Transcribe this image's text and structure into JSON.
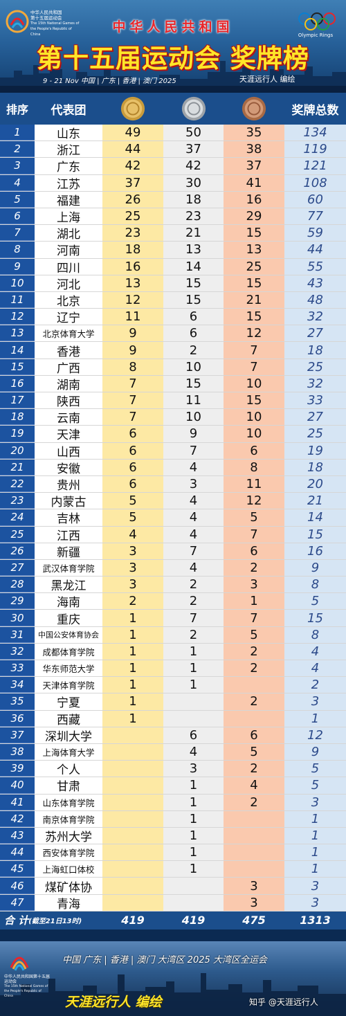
{
  "header": {
    "logo_left_lines": [
      "中华人民共和国",
      "第十五届运动会",
      "The 15th National Games of",
      "the People's Republic of China"
    ],
    "subtitle": "中华人民共和国",
    "title": "第十五届运动会 奖牌榜",
    "date_line": "9 - 21  Nov   中国 | 广东 | 香港 | 澳门  2025",
    "editor": "天涯远行人 编绘",
    "logo_right_text": "Olympic Rings"
  },
  "table": {
    "columns": {
      "rank": "排序",
      "team": "代表团",
      "total": "奖牌总数"
    },
    "medal_icons": [
      "gold-medal-icon",
      "silver-medal-icon",
      "bronze-medal-icon"
    ],
    "rows": [
      {
        "rank": "1",
        "team": "山东",
        "gold": "49",
        "silver": "50",
        "bronze": "35",
        "total": "134"
      },
      {
        "rank": "2",
        "team": "浙江",
        "gold": "44",
        "silver": "37",
        "bronze": "38",
        "total": "119"
      },
      {
        "rank": "3",
        "team": "广东",
        "gold": "42",
        "silver": "42",
        "bronze": "37",
        "total": "121"
      },
      {
        "rank": "4",
        "team": "江苏",
        "gold": "37",
        "silver": "30",
        "bronze": "41",
        "total": "108"
      },
      {
        "rank": "5",
        "team": "福建",
        "gold": "26",
        "silver": "18",
        "bronze": "16",
        "total": "60"
      },
      {
        "rank": "6",
        "team": "上海",
        "gold": "25",
        "silver": "23",
        "bronze": "29",
        "total": "77"
      },
      {
        "rank": "7",
        "team": "湖北",
        "gold": "23",
        "silver": "21",
        "bronze": "15",
        "total": "59"
      },
      {
        "rank": "8",
        "team": "河南",
        "gold": "18",
        "silver": "13",
        "bronze": "13",
        "total": "44"
      },
      {
        "rank": "9",
        "team": "四川",
        "gold": "16",
        "silver": "14",
        "bronze": "25",
        "total": "55"
      },
      {
        "rank": "10",
        "team": "河北",
        "gold": "13",
        "silver": "15",
        "bronze": "15",
        "total": "43"
      },
      {
        "rank": "11",
        "team": "北京",
        "gold": "12",
        "silver": "15",
        "bronze": "21",
        "total": "48"
      },
      {
        "rank": "12",
        "team": "辽宁",
        "gold": "11",
        "silver": "6",
        "bronze": "15",
        "total": "32"
      },
      {
        "rank": "13",
        "team": "北京体育大学",
        "gold": "9",
        "silver": "6",
        "bronze": "12",
        "total": "27"
      },
      {
        "rank": "14",
        "team": "香港",
        "gold": "9",
        "silver": "2",
        "bronze": "7",
        "total": "18"
      },
      {
        "rank": "15",
        "team": "广西",
        "gold": "8",
        "silver": "10",
        "bronze": "7",
        "total": "25"
      },
      {
        "rank": "16",
        "team": "湖南",
        "gold": "7",
        "silver": "15",
        "bronze": "10",
        "total": "32"
      },
      {
        "rank": "17",
        "team": "陕西",
        "gold": "7",
        "silver": "11",
        "bronze": "15",
        "total": "33"
      },
      {
        "rank": "18",
        "team": "云南",
        "gold": "7",
        "silver": "10",
        "bronze": "10",
        "total": "27"
      },
      {
        "rank": "19",
        "team": "天津",
        "gold": "6",
        "silver": "9",
        "bronze": "10",
        "total": "25"
      },
      {
        "rank": "20",
        "team": "山西",
        "gold": "6",
        "silver": "7",
        "bronze": "6",
        "total": "19"
      },
      {
        "rank": "21",
        "team": "安徽",
        "gold": "6",
        "silver": "4",
        "bronze": "8",
        "total": "18"
      },
      {
        "rank": "22",
        "team": "贵州",
        "gold": "6",
        "silver": "3",
        "bronze": "11",
        "total": "20"
      },
      {
        "rank": "23",
        "team": "内蒙古",
        "gold": "5",
        "silver": "4",
        "bronze": "12",
        "total": "21"
      },
      {
        "rank": "24",
        "team": "吉林",
        "gold": "5",
        "silver": "4",
        "bronze": "5",
        "total": "14"
      },
      {
        "rank": "25",
        "team": "江西",
        "gold": "4",
        "silver": "4",
        "bronze": "7",
        "total": "15"
      },
      {
        "rank": "26",
        "team": "新疆",
        "gold": "3",
        "silver": "7",
        "bronze": "6",
        "total": "16"
      },
      {
        "rank": "27",
        "team": "武汉体育学院",
        "gold": "3",
        "silver": "4",
        "bronze": "2",
        "total": "9"
      },
      {
        "rank": "28",
        "team": "黑龙江",
        "gold": "3",
        "silver": "2",
        "bronze": "3",
        "total": "8"
      },
      {
        "rank": "29",
        "team": "海南",
        "gold": "2",
        "silver": "2",
        "bronze": "1",
        "total": "5"
      },
      {
        "rank": "30",
        "team": "重庆",
        "gold": "1",
        "silver": "7",
        "bronze": "7",
        "total": "15"
      },
      {
        "rank": "31",
        "team": "中国公安体育协会",
        "gold": "1",
        "silver": "2",
        "bronze": "5",
        "total": "8"
      },
      {
        "rank": "32",
        "team": "成都体育学院",
        "gold": "1",
        "silver": "1",
        "bronze": "2",
        "total": "4"
      },
      {
        "rank": "33",
        "team": "华东师范大学",
        "gold": "1",
        "silver": "1",
        "bronze": "2",
        "total": "4"
      },
      {
        "rank": "34",
        "team": "天津体育学院",
        "gold": "1",
        "silver": "1",
        "bronze": "",
        "total": "2"
      },
      {
        "rank": "35",
        "team": "宁夏",
        "gold": "1",
        "silver": "",
        "bronze": "2",
        "total": "3"
      },
      {
        "rank": "36",
        "team": "西藏",
        "gold": "1",
        "silver": "",
        "bronze": "",
        "total": "1"
      },
      {
        "rank": "37",
        "team": "深圳大学",
        "gold": "",
        "silver": "6",
        "bronze": "6",
        "total": "12"
      },
      {
        "rank": "38",
        "team": "上海体育大学",
        "gold": "",
        "silver": "4",
        "bronze": "5",
        "total": "9"
      },
      {
        "rank": "39",
        "team": "个人",
        "gold": "",
        "silver": "3",
        "bronze": "2",
        "total": "5"
      },
      {
        "rank": "40",
        "team": "甘肃",
        "gold": "",
        "silver": "1",
        "bronze": "4",
        "total": "5"
      },
      {
        "rank": "41",
        "team": "山东体育学院",
        "gold": "",
        "silver": "1",
        "bronze": "2",
        "total": "3"
      },
      {
        "rank": "42",
        "team": "南京体育学院",
        "gold": "",
        "silver": "1",
        "bronze": "",
        "total": "1"
      },
      {
        "rank": "43",
        "team": "苏州大学",
        "gold": "",
        "silver": "1",
        "bronze": "",
        "total": "1"
      },
      {
        "rank": "44",
        "team": "西安体育学院",
        "gold": "",
        "silver": "1",
        "bronze": "",
        "total": "1"
      },
      {
        "rank": "45",
        "team": "上海虹口体校",
        "gold": "",
        "silver": "1",
        "bronze": "",
        "total": "1"
      },
      {
        "rank": "46",
        "team": "煤矿体协",
        "gold": "",
        "silver": "",
        "bronze": "3",
        "total": "3"
      },
      {
        "rank": "47",
        "team": "青海",
        "gold": "",
        "silver": "",
        "bronze": "3",
        "total": "3"
      }
    ],
    "totals": {
      "label": "合 计",
      "note": "(截至21日13时)",
      "gold": "419",
      "silver": "419",
      "bronze": "475",
      "total": "1313"
    }
  },
  "footer": {
    "logo_lines": [
      "中华人民共和国第十五届运动会",
      "The 15th National Games of the People's Republic of China"
    ],
    "line": "中国 广东 | 香港 | 澳门  大湾区  2025 大湾区全运会",
    "editor": "天涯远行人  编绘",
    "watermark": "知乎 @天涯远行人"
  },
  "colors": {
    "header_blue": "#1b4e8c",
    "gold_col": "#fde9a4",
    "silver_col": "#eeeeee",
    "bronze_col": "#fac9ae",
    "total_col": "#d6e5f4",
    "title_yellow": "#ffe629",
    "subtitle_red": "#e8262a"
  }
}
